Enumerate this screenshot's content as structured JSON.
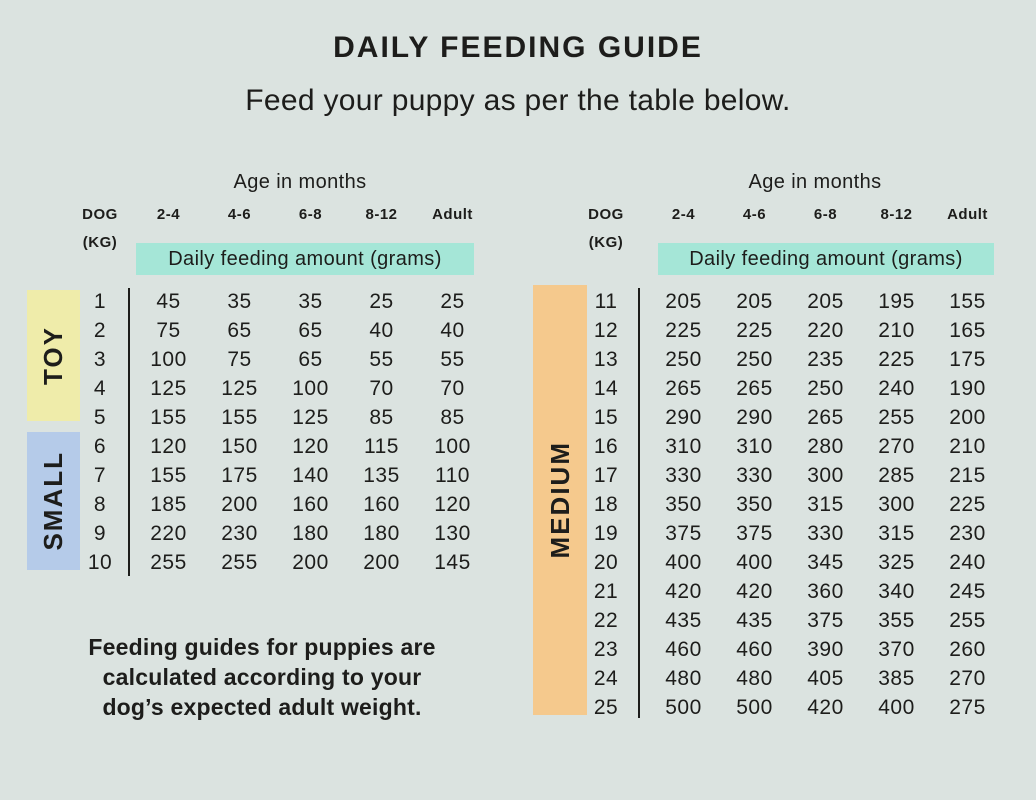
{
  "title": "DAILY FEEDING GUIDE",
  "subtitle": "Feed your puppy as per the table below.",
  "footnote_lines": [
    "Feeding guides for puppies are",
    "calculated according to your",
    "dog’s expected adult weight."
  ],
  "colors": {
    "background": "#dbe3e0",
    "highlight_teal": "#a5e6d7",
    "band_toy": "#efecaa",
    "band_small": "#b5cbe9",
    "band_medium": "#f5c98d",
    "text": "#1d1d1b"
  },
  "header": {
    "age_label": "Age in months",
    "dog_label": "DOG",
    "kg_label": "(KG)",
    "amount_label": "Daily feeding amount (grams)",
    "age_columns": [
      "2-4",
      "4-6",
      "6-8",
      "8-12",
      "Adult"
    ]
  },
  "tables": [
    {
      "bands": [
        {
          "label": "TOY",
          "color": "#efecaa"
        },
        {
          "label": "SMALL",
          "color": "#b5cbe9"
        }
      ]
    },
    {
      "bands": [
        {
          "label": "MEDIUM",
          "color": "#f5c98d"
        }
      ]
    }
  ],
  "chart_data": [
    {
      "type": "table",
      "title": "Daily feeding amount (grams)",
      "x_header": "Age in months",
      "columns": [
        "DOG (KG)",
        "2-4",
        "4-6",
        "6-8",
        "8-12",
        "Adult"
      ],
      "size_groups": [
        {
          "label": "TOY",
          "kg_from": 1,
          "kg_to": 5
        },
        {
          "label": "SMALL",
          "kg_from": 6,
          "kg_to": 10
        }
      ],
      "rows": [
        [
          1,
          45,
          35,
          35,
          25,
          25
        ],
        [
          2,
          75,
          65,
          65,
          40,
          40
        ],
        [
          3,
          100,
          75,
          65,
          55,
          55
        ],
        [
          4,
          125,
          125,
          100,
          70,
          70
        ],
        [
          5,
          155,
          155,
          125,
          85,
          85
        ],
        [
          6,
          120,
          150,
          120,
          115,
          100
        ],
        [
          7,
          155,
          175,
          140,
          135,
          110
        ],
        [
          8,
          185,
          200,
          160,
          160,
          120
        ],
        [
          9,
          220,
          230,
          180,
          180,
          130
        ],
        [
          10,
          255,
          255,
          200,
          200,
          145
        ]
      ]
    },
    {
      "type": "table",
      "title": "Daily feeding amount (grams)",
      "x_header": "Age in months",
      "columns": [
        "DOG (KG)",
        "2-4",
        "4-6",
        "6-8",
        "8-12",
        "Adult"
      ],
      "size_groups": [
        {
          "label": "MEDIUM",
          "kg_from": 11,
          "kg_to": 25
        }
      ],
      "rows": [
        [
          11,
          205,
          205,
          205,
          195,
          155
        ],
        [
          12,
          225,
          225,
          220,
          210,
          165
        ],
        [
          13,
          250,
          250,
          235,
          225,
          175
        ],
        [
          14,
          265,
          265,
          250,
          240,
          190
        ],
        [
          15,
          290,
          290,
          265,
          255,
          200
        ],
        [
          16,
          310,
          310,
          280,
          270,
          210
        ],
        [
          17,
          330,
          330,
          300,
          285,
          215
        ],
        [
          18,
          350,
          350,
          315,
          300,
          225
        ],
        [
          19,
          375,
          375,
          330,
          315,
          230
        ],
        [
          20,
          400,
          400,
          345,
          325,
          240
        ],
        [
          21,
          420,
          420,
          360,
          340,
          245
        ],
        [
          22,
          435,
          435,
          375,
          355,
          255
        ],
        [
          23,
          460,
          460,
          390,
          370,
          260
        ],
        [
          24,
          480,
          480,
          405,
          385,
          270
        ],
        [
          25,
          500,
          500,
          420,
          400,
          275
        ]
      ]
    }
  ]
}
